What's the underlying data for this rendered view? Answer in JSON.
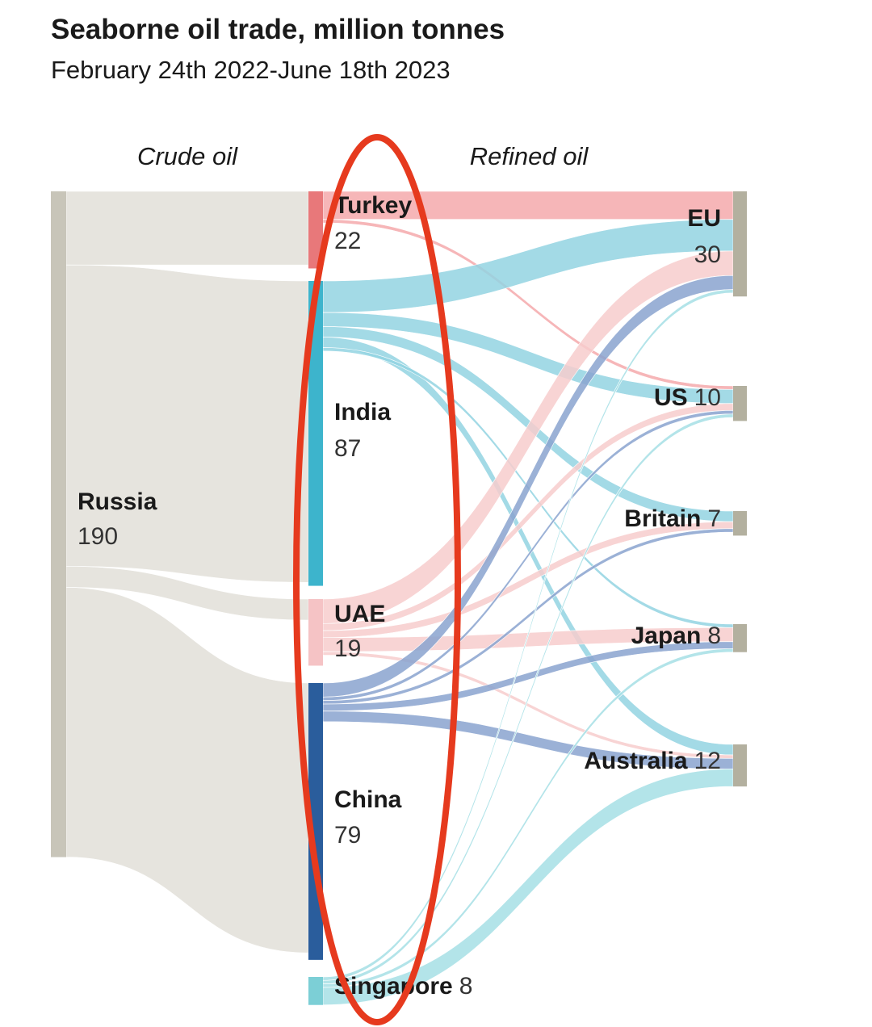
{
  "chart_data": {
    "type": "sankey",
    "title": "Seaborne oil trade, million tonnes",
    "subtitle": "February 24th 2022-June 18th 2023",
    "stages": [
      {
        "nodes": [
          {
            "name": "Russia",
            "value": 190,
            "color": "#c8c5b9",
            "link_color": "#e6e4de"
          }
        ]
      },
      {
        "nodes": [
          {
            "name": "Turkey",
            "value": 22,
            "color": "#e8787a",
            "link_color": "#f4a9ac"
          },
          {
            "name": "India",
            "value": 87,
            "color": "#3db4cc",
            "link_color": "#93d3e2"
          },
          {
            "name": "UAE",
            "value": 19,
            "color": "#f5c3c5",
            "link_color": "#f7cccd"
          },
          {
            "name": "China",
            "value": 79,
            "color": "#2a5d9c",
            "link_color": "#8aa3cf"
          },
          {
            "name": "Singapore",
            "value": 8,
            "color": "#7ccfd6",
            "link_color": "#a6dfe5"
          }
        ]
      },
      {
        "nodes": [
          {
            "name": "EU",
            "value": 30,
            "color": "#b3b09f"
          },
          {
            "name": "US",
            "value": 10,
            "color": "#b3b09f"
          },
          {
            "name": "Britain",
            "value": 7,
            "color": "#b3b09f"
          },
          {
            "name": "Japan",
            "value": 8,
            "color": "#b3b09f"
          },
          {
            "name": "Australia",
            "value": 12,
            "color": "#b3b09f"
          }
        ]
      }
    ],
    "flows": [
      {
        "label": "Crude oil",
        "links": [
          {
            "source": "Russia",
            "target": "Turkey",
            "value": 21
          },
          {
            "source": "Russia",
            "target": "India",
            "value": 86
          },
          {
            "source": "Russia",
            "target": "UAE",
            "value": 6
          },
          {
            "source": "Russia",
            "target": "China",
            "value": 77
          }
        ]
      },
      {
        "label": "Refined oil",
        "links": [
          {
            "source": "Turkey",
            "target": "EU",
            "value": 8
          },
          {
            "source": "Turkey",
            "target": "US",
            "value": 1
          },
          {
            "source": "India",
            "target": "EU",
            "value": 9
          },
          {
            "source": "India",
            "target": "US",
            "value": 4
          },
          {
            "source": "India",
            "target": "Britain",
            "value": 3
          },
          {
            "source": "India",
            "target": "Australia",
            "value": 3
          },
          {
            "source": "India",
            "target": "Japan",
            "value": 1
          },
          {
            "source": "UAE",
            "target": "EU",
            "value": 7
          },
          {
            "source": "UAE",
            "target": "US",
            "value": 2
          },
          {
            "source": "UAE",
            "target": "Britain",
            "value": 2
          },
          {
            "source": "UAE",
            "target": "Japan",
            "value": 4
          },
          {
            "source": "UAE",
            "target": "Australia",
            "value": 1
          },
          {
            "source": "China",
            "target": "EU",
            "value": 4
          },
          {
            "source": "China",
            "target": "US",
            "value": 1
          },
          {
            "source": "China",
            "target": "Britain",
            "value": 1
          },
          {
            "source": "China",
            "target": "Japan",
            "value": 2
          },
          {
            "source": "China",
            "target": "Australia",
            "value": 3
          },
          {
            "source": "Singapore",
            "target": "EU",
            "value": 1
          },
          {
            "source": "Singapore",
            "target": "US",
            "value": 1
          },
          {
            "source": "Singapore",
            "target": "Japan",
            "value": 1
          },
          {
            "source": "Singapore",
            "target": "Australia",
            "value": 5
          }
        ]
      }
    ]
  }
}
